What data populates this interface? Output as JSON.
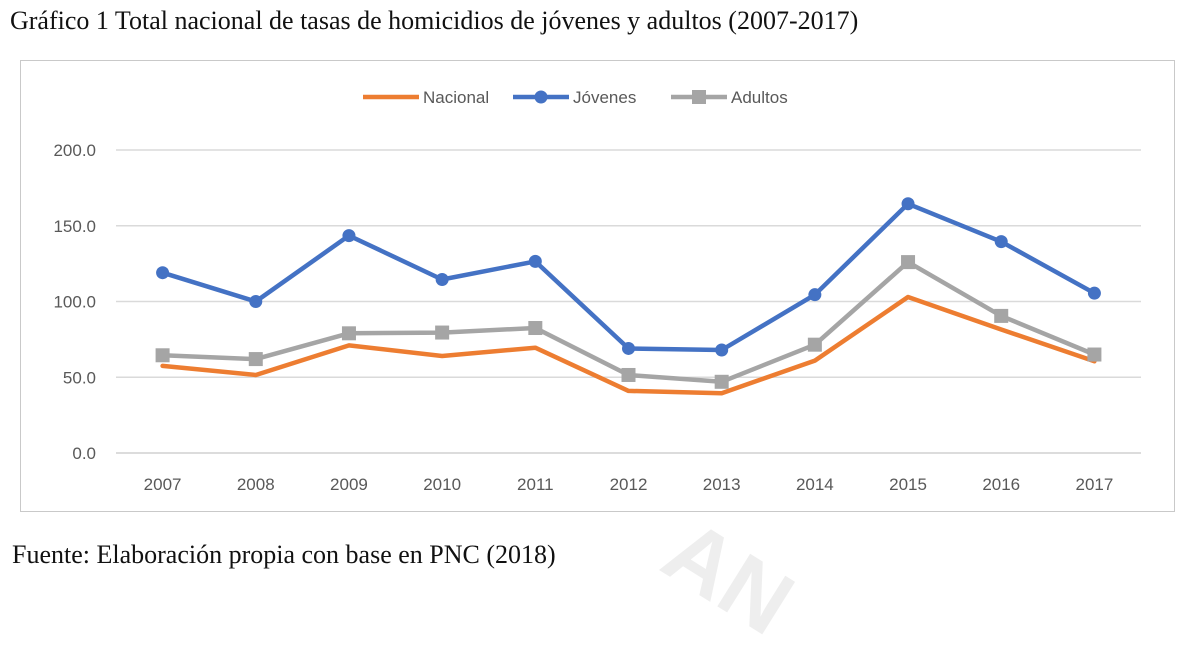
{
  "header": {
    "title": "Gráfico 1 Total nacional de tasas de homicidios de jóvenes y adultos (2007-2017)"
  },
  "footer": {
    "source": "Fuente: Elaboración propia con base en PNC (2018)"
  },
  "watermark": {
    "text": "AN"
  },
  "chart_data": {
    "type": "line",
    "title": "",
    "xlabel": "",
    "ylabel": "",
    "categories": [
      "2007",
      "2008",
      "2009",
      "2010",
      "2011",
      "2012",
      "2013",
      "2014",
      "2015",
      "2016",
      "2017"
    ],
    "ylim": [
      0,
      200
    ],
    "yticks": [
      "0.0",
      "50.0",
      "100.0",
      "150.0",
      "200.0"
    ],
    "grid": true,
    "legend_position": "top-center",
    "series": [
      {
        "name": "Nacional",
        "color": "#ED7D31",
        "marker": "none",
        "values": [
          57.5,
          51.5,
          71.0,
          64.0,
          69.5,
          41.0,
          39.5,
          61.0,
          103.0,
          81.5,
          60.5
        ]
      },
      {
        "name": "Jóvenes",
        "color": "#4472C4",
        "marker": "circle",
        "values": [
          119.0,
          100.0,
          143.5,
          114.5,
          126.5,
          69.0,
          68.0,
          104.5,
          164.5,
          139.5,
          105.5
        ]
      },
      {
        "name": "Adultos",
        "color": "#A5A5A5",
        "marker": "square",
        "values": [
          64.5,
          62.0,
          79.0,
          79.5,
          82.5,
          51.5,
          47.0,
          71.5,
          126.0,
          90.5,
          65.0
        ]
      }
    ]
  }
}
